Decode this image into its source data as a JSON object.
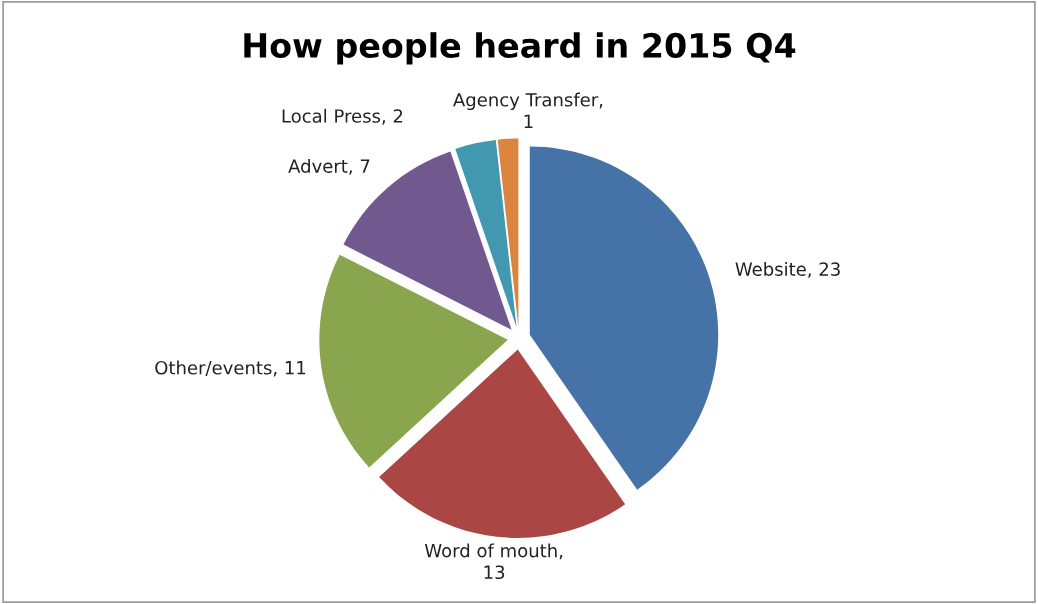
{
  "chart_data": {
    "type": "pie",
    "title": "How people heard in 2015 Q4",
    "categories": [
      "Website",
      "Word of mouth",
      "Other/events",
      "Advert",
      "Local Press",
      "Agency Transfer"
    ],
    "values": [
      23,
      13,
      11,
      7,
      2,
      1
    ],
    "colors": [
      "#4572a7",
      "#aa4643",
      "#89a54e",
      "#71588f",
      "#4198af",
      "#db843d"
    ],
    "value_labels": [
      ", 23",
      ", 13",
      ", 11",
      ", 7",
      ", 2",
      ", 1"
    ],
    "legend": false
  }
}
